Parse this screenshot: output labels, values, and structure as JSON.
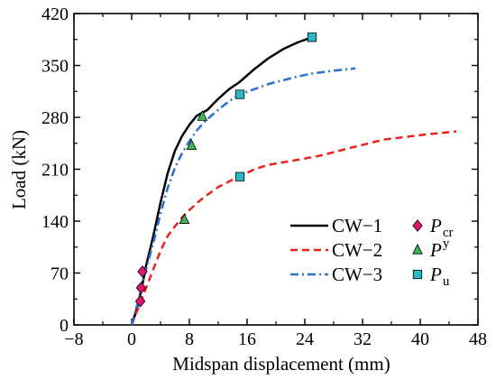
{
  "chart_data": {
    "type": "line",
    "title": "",
    "xlabel": "Midspan displacement  (mm)",
    "ylabel": "Load (kN)",
    "xlim": [
      -8,
      48
    ],
    "ylim": [
      0,
      420
    ],
    "xticks": [
      -8,
      0,
      8,
      16,
      24,
      32,
      40,
      48
    ],
    "yticks": [
      0,
      70,
      140,
      210,
      280,
      350,
      420
    ],
    "xtick_labels": [
      "−8",
      "0",
      "8",
      "16",
      "24",
      "32",
      "40",
      "48"
    ],
    "ytick_labels": [
      "0",
      "70",
      "140",
      "210",
      "280",
      "350",
      "420"
    ],
    "grid": false,
    "legend_placement": "bottom-right",
    "series": [
      {
        "name": "CW−1",
        "color": "#000000",
        "dash": "solid",
        "x": [
          0,
          0.5,
          1.0,
          1.5,
          2.0,
          3.0,
          4.0,
          5.0,
          6.0,
          7.0,
          8.0,
          9.0,
          10.5,
          12.0,
          13.5,
          15.0,
          17.0,
          19.0,
          21.0,
          23.0,
          25.0
        ],
        "y": [
          0,
          15,
          32,
          55,
          80,
          120,
          165,
          205,
          235,
          255,
          270,
          282,
          290,
          305,
          318,
          328,
          345,
          360,
          372,
          381,
          388
        ]
      },
      {
        "name": "CW−2",
        "color": "#e8231c",
        "dash": "dashed",
        "x": [
          0,
          1.0,
          2.0,
          3.0,
          4.0,
          5.0,
          6.0,
          7.0,
          8.0,
          9.0,
          10.0,
          12.0,
          14.0,
          15.0,
          17.0,
          19.0,
          22.0,
          26.0,
          30.0,
          35.0,
          40.0,
          45.0
        ],
        "y": [
          0,
          25,
          50,
          75,
          100,
          120,
          133,
          145,
          155,
          164,
          172,
          186,
          196,
          200,
          210,
          216,
          221,
          228,
          238,
          250,
          256,
          261
        ]
      },
      {
        "name": "CW−3",
        "color": "#2a70d0",
        "dash": "dashdot",
        "x": [
          0,
          0.5,
          1.0,
          1.5,
          2.0,
          3.0,
          4.0,
          5.0,
          6.0,
          7.0,
          8.0,
          9.0,
          10.0,
          11.0,
          12.0,
          13.0,
          14.0,
          15.0,
          17.0,
          19.0,
          21.0,
          23.0,
          25.0,
          28.0,
          31.0
        ],
        "y": [
          0,
          18,
          35,
          55,
          75,
          110,
          150,
          185,
          212,
          232,
          248,
          262,
          273,
          282,
          290,
          298,
          305,
          311,
          318,
          325,
          330,
          335,
          339,
          343,
          346
        ]
      }
    ],
    "markers": [
      {
        "name": "P_cr",
        "symbol": "P",
        "subscript": "cr",
        "shape": "diamond",
        "color": "#e0156f",
        "points": [
          [
            1.5,
            72
          ],
          [
            1.3,
            50
          ],
          [
            1.2,
            32
          ]
        ]
      },
      {
        "name": "P_y",
        "symbol": "P",
        "subscript": "y",
        "shape": "triangle",
        "color": "#3cb55a",
        "points": [
          [
            9.8,
            281
          ],
          [
            8.3,
            242
          ],
          [
            7.3,
            142
          ]
        ]
      },
      {
        "name": "P_u",
        "symbol": "P",
        "subscript": "u",
        "shape": "square",
        "color": "#29b8c4",
        "points": [
          [
            25.0,
            388
          ],
          [
            15.0,
            311
          ],
          [
            15.0,
            200
          ]
        ]
      }
    ]
  }
}
